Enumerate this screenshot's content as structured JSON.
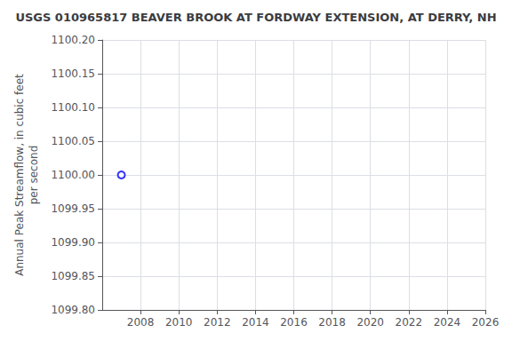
{
  "chart_data": {
    "type": "scatter",
    "title": "USGS 010965817 BEAVER BROOK AT FORDWAY EXTENSION, AT DERRY, NH",
    "ylabel": "Annual Peak Streamflow, in cubic feet\nper second",
    "x": [
      2007
    ],
    "values": [
      1100
    ],
    "color": "#0000ff",
    "marker": "hollow circle",
    "xlim": [
      2006,
      2026
    ],
    "xticks": [
      2008,
      2010,
      2012,
      2014,
      2016,
      2018,
      2020,
      2022,
      2024,
      2026
    ],
    "ylim": [
      1099.8,
      1100.2
    ],
    "yticks": [
      {
        "value": 1099.8,
        "label": "1099.80"
      },
      1099.85,
      {
        "value": 1099.9,
        "label": "1099.90"
      },
      1099.95,
      {
        "value": 1100,
        "label": "1100.00"
      },
      1100.05,
      {
        "value": 1100.1,
        "label": "1100.10"
      },
      1100.15,
      {
        "value": 1100.2,
        "label": "1100.20"
      }
    ],
    "grid": true
  }
}
